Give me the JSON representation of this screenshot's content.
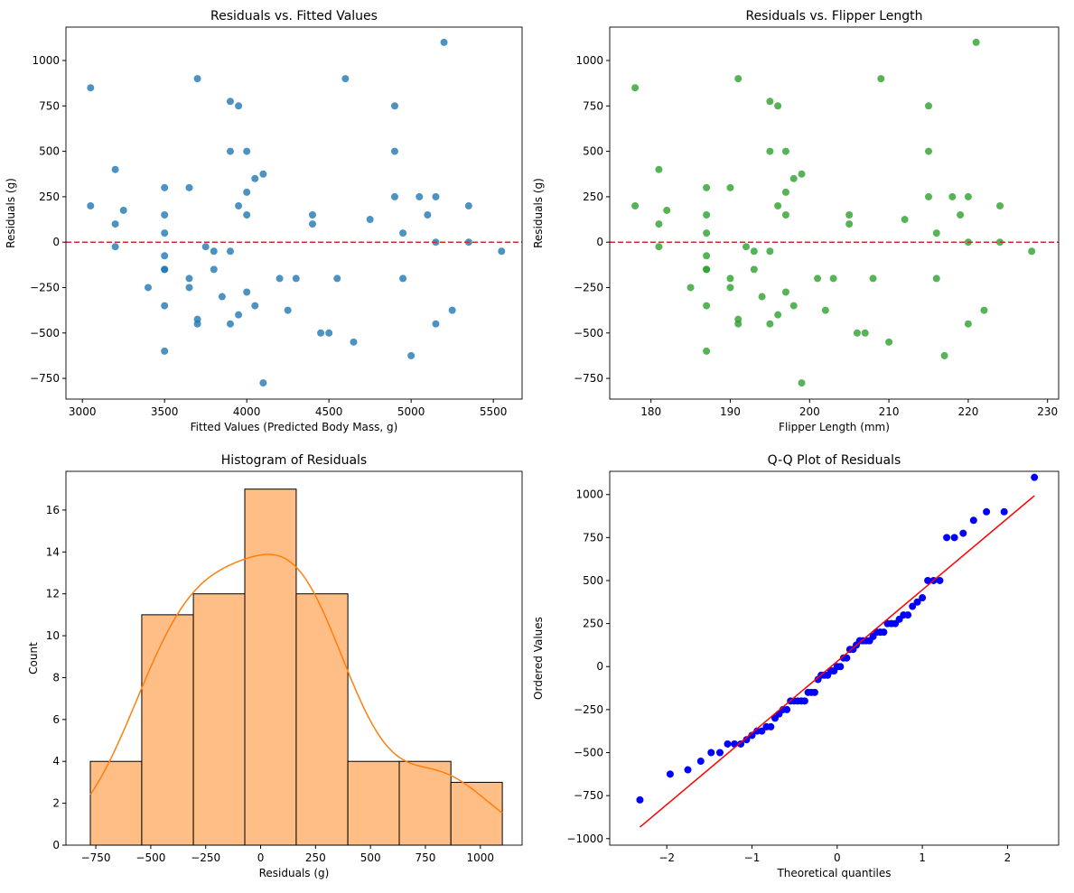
{
  "chart_data": [
    {
      "type": "scatter",
      "title": "Residuals vs. Fitted Values",
      "xlabel": "Fitted Values (Predicted Body Mass, g)",
      "ylabel": "Residuals (g)",
      "color": "#1f77b4",
      "xlim": [
        2900,
        5675
      ],
      "ylim": [
        -864,
        1184
      ],
      "xticks": [
        3000,
        3500,
        4000,
        4500,
        5000,
        5500
      ],
      "yticks": [
        -750,
        -500,
        -250,
        0,
        250,
        500,
        750,
        1000
      ],
      "hline": {
        "y": 0,
        "color": "#d62728",
        "style": "dashed"
      },
      "x": [
        3050,
        3050,
        3200,
        3200,
        3200,
        3250,
        3400,
        3500,
        3500,
        3500,
        3500,
        3500,
        3500,
        3500,
        3500,
        3650,
        3650,
        3650,
        3700,
        3700,
        3700,
        3750,
        3800,
        3800,
        3850,
        3900,
        3900,
        3900,
        3900,
        3950,
        3950,
        3950,
        4000,
        4000,
        4000,
        4000,
        4050,
        4050,
        4100,
        4100,
        4200,
        4250,
        4300,
        4400,
        4400,
        4450,
        4500,
        4550,
        4600,
        4650,
        4750,
        4900,
        4900,
        4900,
        4950,
        4950,
        5000,
        5050,
        5100,
        5150,
        5150,
        5150,
        5200,
        5250,
        5350,
        5350,
        5550
      ],
      "y": [
        850,
        200,
        400,
        100,
        -25,
        175,
        -250,
        300,
        150,
        50,
        -75,
        -150,
        -150,
        -350,
        -600,
        300,
        -200,
        -250,
        900,
        -425,
        -450,
        -25,
        -50,
        -150,
        -300,
        775,
        500,
        -50,
        -450,
        750,
        200,
        -400,
        500,
        275,
        150,
        -275,
        350,
        -350,
        375,
        -775,
        -200,
        -375,
        -200,
        150,
        100,
        -500,
        -500,
        -200,
        900,
        -550,
        125,
        750,
        500,
        250,
        50,
        -200,
        -625,
        250,
        150,
        250,
        0,
        -450,
        1100,
        -375,
        200,
        0,
        -50
      ]
    },
    {
      "type": "scatter",
      "title": "Residuals vs. Flipper Length",
      "xlabel": "Flipper Length (mm)",
      "ylabel": "Residuals (g)",
      "color": "#2ca02c",
      "xlim": [
        174.8,
        231.4
      ],
      "ylim": [
        -864,
        1184
      ],
      "xticks": [
        180,
        190,
        200,
        210,
        220,
        230
      ],
      "yticks": [
        -750,
        -500,
        -250,
        0,
        250,
        500,
        750,
        1000
      ],
      "hline": {
        "y": 0,
        "color": "#d62728",
        "style": "dashed"
      },
      "x": [
        178,
        178,
        181,
        181,
        181,
        182,
        185,
        187,
        187,
        187,
        187,
        187,
        187,
        187,
        187,
        190,
        190,
        190,
        191,
        191,
        191,
        192,
        193,
        193,
        194,
        195,
        195,
        195,
        195,
        196,
        196,
        196,
        197,
        197,
        197,
        197,
        198,
        198,
        199,
        199,
        201,
        202,
        203,
        205,
        205,
        206,
        207,
        208,
        209,
        210,
        212,
        215,
        215,
        215,
        216,
        216,
        217,
        218,
        219,
        220,
        220,
        220,
        221,
        222,
        224,
        224,
        228
      ],
      "y": [
        850,
        200,
        400,
        100,
        -25,
        175,
        -250,
        300,
        150,
        50,
        -75,
        -150,
        -150,
        -350,
        -600,
        300,
        -200,
        -250,
        900,
        -425,
        -450,
        -25,
        -50,
        -150,
        -300,
        775,
        500,
        -50,
        -450,
        750,
        200,
        -400,
        500,
        275,
        150,
        -275,
        350,
        -350,
        375,
        -775,
        -200,
        -375,
        -200,
        150,
        100,
        -500,
        -500,
        -200,
        900,
        -550,
        125,
        750,
        500,
        250,
        50,
        -200,
        -625,
        250,
        150,
        250,
        0,
        -450,
        1100,
        -375,
        200,
        0,
        -50
      ]
    },
    {
      "type": "bar",
      "title": "Histogram of Residuals",
      "xlabel": "Residuals (g)",
      "ylabel": "Count",
      "color": "#ffbe86",
      "line_color": "#ff7f0e",
      "xlim": [
        -886,
        1190
      ],
      "ylim": [
        0,
        17.85
      ],
      "xticks": [
        -750,
        -500,
        -250,
        0,
        250,
        500,
        750,
        1000
      ],
      "yticks": [
        0,
        2,
        4,
        6,
        8,
        10,
        12,
        14,
        16
      ],
      "bin_edges": [
        -775,
        -541,
        -306,
        -72,
        162,
        397,
        631,
        866,
        1100
      ],
      "values": [
        4,
        11,
        12,
        17,
        12,
        4,
        4,
        3
      ],
      "kde": true
    },
    {
      "type": "scatter",
      "title": "Q-Q Plot of Residuals",
      "xlabel": "Theoretical quantiles",
      "ylabel": "Ordered Values",
      "color": "#0000ff",
      "line_color": "#ff0000",
      "xlim": [
        -2.67,
        2.6
      ],
      "ylim": [
        -1038,
        1135
      ],
      "xticks": [
        -2,
        -1,
        0,
        1,
        2
      ],
      "yticks": [
        -1000,
        -750,
        -500,
        -250,
        0,
        250,
        500,
        750,
        1000
      ],
      "fit_line": {
        "slope": 416,
        "intercept": 30
      }
    }
  ]
}
